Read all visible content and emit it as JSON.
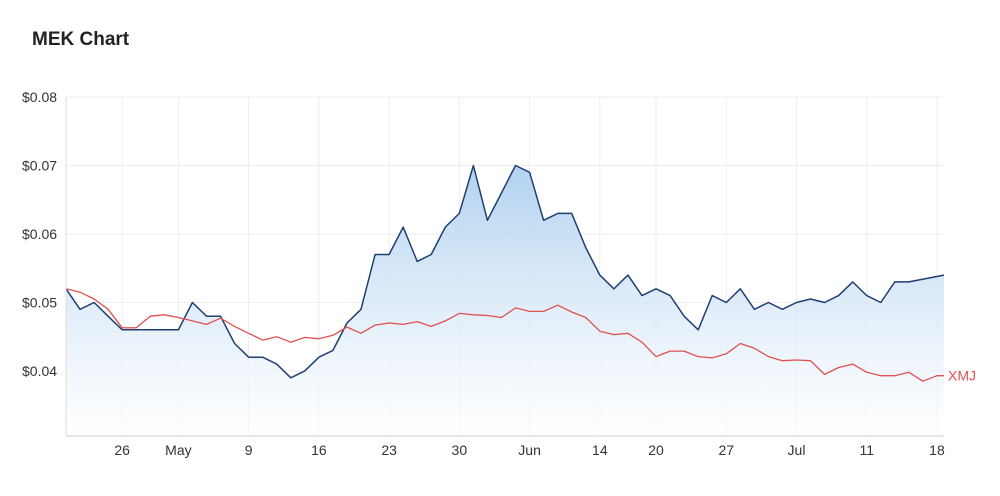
{
  "header": {
    "title": "MEK Chart"
  },
  "chart_data": {
    "type": "area",
    "title": "MEK Chart",
    "xlabel": "",
    "ylabel": "",
    "ylim": [
      0.0305,
      0.08
    ],
    "y_ticks": [
      {
        "value": 0.08,
        "label": "$0.08"
      },
      {
        "value": 0.07,
        "label": "$0.07"
      },
      {
        "value": 0.06,
        "label": "$0.06"
      },
      {
        "value": 0.05,
        "label": "$0.05"
      },
      {
        "value": 0.04,
        "label": "$0.04"
      }
    ],
    "x_ticks": [
      {
        "index": 8,
        "label": "26"
      },
      {
        "index": 16,
        "label": "May"
      },
      {
        "index": 26,
        "label": "9"
      },
      {
        "index": 36,
        "label": "16"
      },
      {
        "index": 46,
        "label": "23"
      },
      {
        "index": 56,
        "label": "30"
      },
      {
        "index": 66,
        "label": "Jun"
      },
      {
        "index": 76,
        "label": "14"
      },
      {
        "index": 84,
        "label": "20"
      },
      {
        "index": 94,
        "label": "27"
      },
      {
        "index": 104,
        "label": "Jul"
      },
      {
        "index": 114,
        "label": "11"
      },
      {
        "index": 124,
        "label": "18"
      }
    ],
    "grid": true,
    "colors": {
      "mek": "#1f3f73",
      "mek_fill": "#a9cdee",
      "xmj": "#e05050",
      "grid": "#eeeeee"
    },
    "series": [
      {
        "name": "",
        "values": [
          [
            0,
            0.052
          ],
          [
            2,
            0.049
          ],
          [
            4,
            0.05
          ],
          [
            6,
            0.048
          ],
          [
            8,
            0.046
          ],
          [
            10,
            0.046
          ],
          [
            12,
            0.046
          ],
          [
            14,
            0.046
          ],
          [
            16,
            0.046
          ],
          [
            18,
            0.05
          ],
          [
            20,
            0.048
          ],
          [
            22,
            0.048
          ],
          [
            24,
            0.044
          ],
          [
            26,
            0.042
          ],
          [
            28,
            0.042
          ],
          [
            30,
            0.041
          ],
          [
            32,
            0.039
          ],
          [
            34,
            0.04
          ],
          [
            36,
            0.042
          ],
          [
            38,
            0.043
          ],
          [
            40,
            0.047
          ],
          [
            42,
            0.049
          ],
          [
            44,
            0.057
          ],
          [
            46,
            0.057
          ],
          [
            48,
            0.061
          ],
          [
            50,
            0.056
          ],
          [
            52,
            0.057
          ],
          [
            54,
            0.061
          ],
          [
            56,
            0.063
          ],
          [
            58,
            0.07
          ],
          [
            60,
            0.062
          ],
          [
            62,
            0.066
          ],
          [
            64,
            0.07
          ],
          [
            66,
            0.069
          ],
          [
            68,
            0.062
          ],
          [
            70,
            0.063
          ],
          [
            72,
            0.063
          ],
          [
            74,
            0.058
          ],
          [
            76,
            0.054
          ],
          [
            78,
            0.052
          ],
          [
            80,
            0.054
          ],
          [
            82,
            0.051
          ],
          [
            84,
            0.052
          ],
          [
            86,
            0.051
          ],
          [
            88,
            0.048
          ],
          [
            90,
            0.046
          ],
          [
            92,
            0.051
          ],
          [
            94,
            0.05
          ],
          [
            96,
            0.052
          ],
          [
            98,
            0.049
          ],
          [
            100,
            0.05
          ],
          [
            102,
            0.049
          ],
          [
            104,
            0.05
          ],
          [
            106,
            0.0505
          ],
          [
            108,
            0.05
          ],
          [
            110,
            0.051
          ],
          [
            112,
            0.053
          ],
          [
            114,
            0.051
          ],
          [
            116,
            0.05
          ],
          [
            118,
            0.053
          ],
          [
            120,
            0.053
          ],
          [
            125,
            0.054
          ]
        ]
      },
      {
        "name": "XMJ",
        "values": [
          [
            0,
            0.052
          ],
          [
            2,
            0.0515
          ],
          [
            4,
            0.0505
          ],
          [
            6,
            0.049
          ],
          [
            8,
            0.0463
          ],
          [
            10,
            0.0463
          ],
          [
            12,
            0.048
          ],
          [
            14,
            0.0482
          ],
          [
            16,
            0.0478
          ],
          [
            18,
            0.0473
          ],
          [
            20,
            0.0468
          ],
          [
            22,
            0.0477
          ],
          [
            24,
            0.0465
          ],
          [
            26,
            0.0455
          ],
          [
            28,
            0.0445
          ],
          [
            30,
            0.045
          ],
          [
            32,
            0.0442
          ],
          [
            34,
            0.0449
          ],
          [
            36,
            0.0447
          ],
          [
            38,
            0.0452
          ],
          [
            40,
            0.0464
          ],
          [
            42,
            0.0455
          ],
          [
            44,
            0.0467
          ],
          [
            46,
            0.047
          ],
          [
            48,
            0.0468
          ],
          [
            50,
            0.0472
          ],
          [
            52,
            0.0465
          ],
          [
            54,
            0.0473
          ],
          [
            56,
            0.0484
          ],
          [
            58,
            0.0482
          ],
          [
            60,
            0.0481
          ],
          [
            62,
            0.0478
          ],
          [
            64,
            0.0492
          ],
          [
            66,
            0.0487
          ],
          [
            68,
            0.0487
          ],
          [
            70,
            0.0496
          ],
          [
            72,
            0.0486
          ],
          [
            74,
            0.0478
          ],
          [
            76,
            0.0458
          ],
          [
            78,
            0.0453
          ],
          [
            80,
            0.0455
          ],
          [
            82,
            0.0442
          ],
          [
            84,
            0.0421
          ],
          [
            86,
            0.0429
          ],
          [
            88,
            0.0429
          ],
          [
            90,
            0.0421
          ],
          [
            92,
            0.0419
          ],
          [
            94,
            0.0425
          ],
          [
            96,
            0.044
          ],
          [
            98,
            0.0433
          ],
          [
            100,
            0.0421
          ],
          [
            102,
            0.0415
          ],
          [
            104,
            0.0416
          ],
          [
            106,
            0.0415
          ],
          [
            108,
            0.0395
          ],
          [
            110,
            0.0405
          ],
          [
            112,
            0.041
          ],
          [
            114,
            0.0398
          ],
          [
            116,
            0.0393
          ],
          [
            118,
            0.0393
          ],
          [
            120,
            0.0398
          ],
          [
            122,
            0.0385
          ],
          [
            124,
            0.0393
          ],
          [
            125,
            0.0393
          ]
        ]
      }
    ]
  }
}
